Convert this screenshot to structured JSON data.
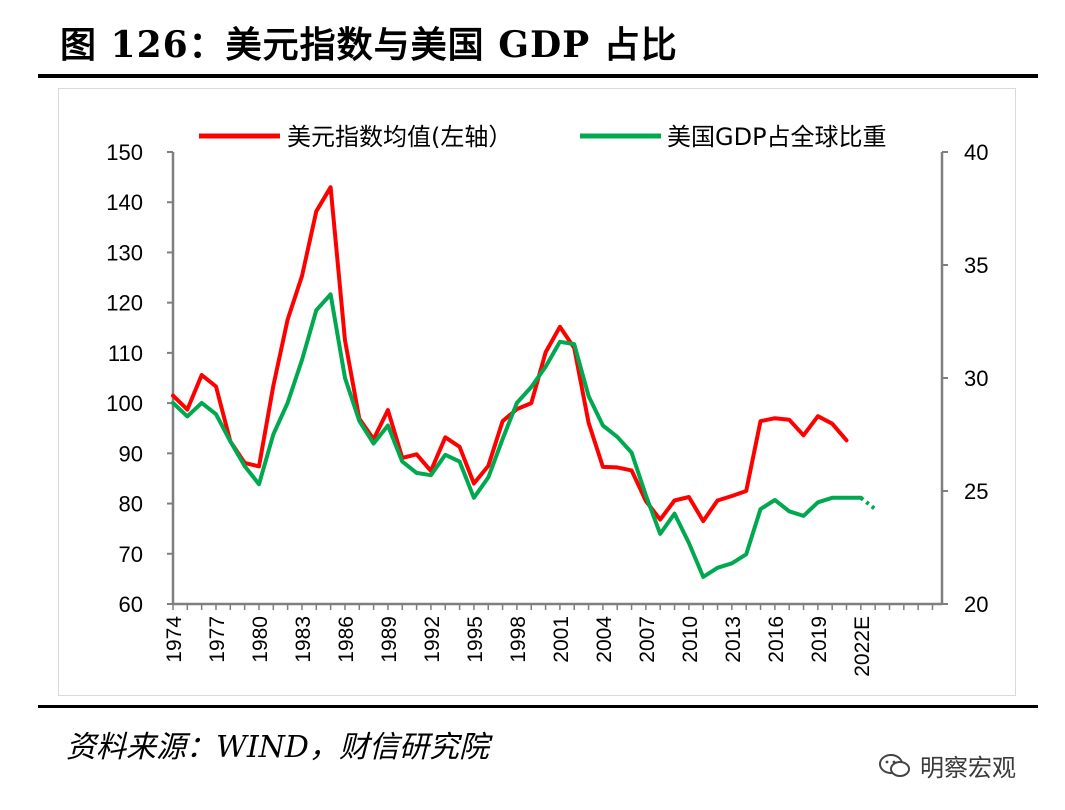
{
  "title": "图 126：美元指数与美国 GDP 占比",
  "source": "资料来源：WIND，财信研究院",
  "watermark": "明察宏观",
  "colors": {
    "dxy": "#ff0000",
    "gdp_share": "#00a850",
    "axis": "#7f7f7f"
  },
  "chart_data": {
    "type": "line",
    "x_tick_labels": [
      "1974",
      "1977",
      "1980",
      "1983",
      "1986",
      "1989",
      "1992",
      "1995",
      "1998",
      "2001",
      "2004",
      "2007",
      "2010",
      "2013",
      "2016",
      "2019",
      "2022E"
    ],
    "left_axis": {
      "ylim": [
        60,
        150
      ],
      "ticks": [
        60,
        70,
        80,
        90,
        100,
        110,
        120,
        130,
        140,
        150
      ]
    },
    "right_axis": {
      "ylim": [
        20,
        40
      ],
      "ticks": [
        20,
        25,
        30,
        35,
        40
      ]
    },
    "legend_placement": "top",
    "series": [
      {
        "name": "美元指数均值(左轴）",
        "axis": "left",
        "x": [
          1974,
          1975,
          1976,
          1977,
          1978,
          1979,
          1980,
          1981,
          1982,
          1983,
          1984,
          1985,
          1986,
          1987,
          1988,
          1989,
          1990,
          1991,
          1992,
          1993,
          1994,
          1995,
          1996,
          1997,
          1998,
          1999,
          2000,
          2001,
          2002,
          2003,
          2004,
          2005,
          2006,
          2007,
          2008,
          2009,
          2010,
          2011,
          2012,
          2013,
          2014,
          2015,
          2016,
          2017,
          2018,
          2019,
          2020,
          2021
        ],
        "values": [
          101.5,
          98.7,
          105.6,
          103.3,
          92.4,
          88.1,
          87.4,
          103.4,
          116.6,
          125.3,
          138.2,
          143,
          112.5,
          96.9,
          92.8,
          98.6,
          89.1,
          89.8,
          86.5,
          93.2,
          91.3,
          84,
          87.5,
          96.4,
          98.8,
          100,
          110.1,
          115.2,
          111,
          96.1,
          87.3,
          87.2,
          86.6,
          80.5,
          76.8,
          80.6,
          81.3,
          76.5,
          80.6,
          81.5,
          82.5,
          96.4,
          97,
          96.7,
          93.6,
          97.4,
          95.9,
          92.6
        ]
      },
      {
        "name": "美国GDP占全球比重",
        "axis": "right",
        "x": [
          1974,
          1975,
          1976,
          1977,
          1978,
          1979,
          1980,
          1981,
          1982,
          1983,
          1984,
          1985,
          1986,
          1987,
          1988,
          1989,
          1990,
          1991,
          1992,
          1993,
          1994,
          1995,
          1996,
          1997,
          1998,
          1999,
          2000,
          2001,
          2002,
          2003,
          2004,
          2005,
          2006,
          2007,
          2008,
          2009,
          2010,
          2011,
          2012,
          2013,
          2014,
          2015,
          2016,
          2017,
          2018,
          2019,
          2020,
          2021,
          2022
        ],
        "values": [
          28.9,
          28.3,
          28.9,
          28.4,
          27.2,
          26.1,
          25.3,
          27.5,
          28.9,
          30.8,
          33,
          33.7,
          30,
          28.1,
          27.1,
          27.9,
          26.3,
          25.8,
          25.7,
          26.6,
          26.3,
          24.7,
          25.6,
          27.3,
          28.9,
          29.6,
          30.5,
          31.6,
          31.5,
          29.2,
          27.9,
          27.4,
          26.7,
          24.8,
          23.1,
          24,
          22.7,
          21.2,
          21.6,
          21.8,
          22.2,
          24.2,
          24.6,
          24.1,
          23.9,
          24.5,
          24.7,
          24.7,
          24.7
        ]
      }
    ],
    "projection": {
      "series": "美国GDP占全球比重",
      "x": [
        2022,
        2023
      ],
      "values": [
        24.7,
        24.2
      ]
    }
  }
}
